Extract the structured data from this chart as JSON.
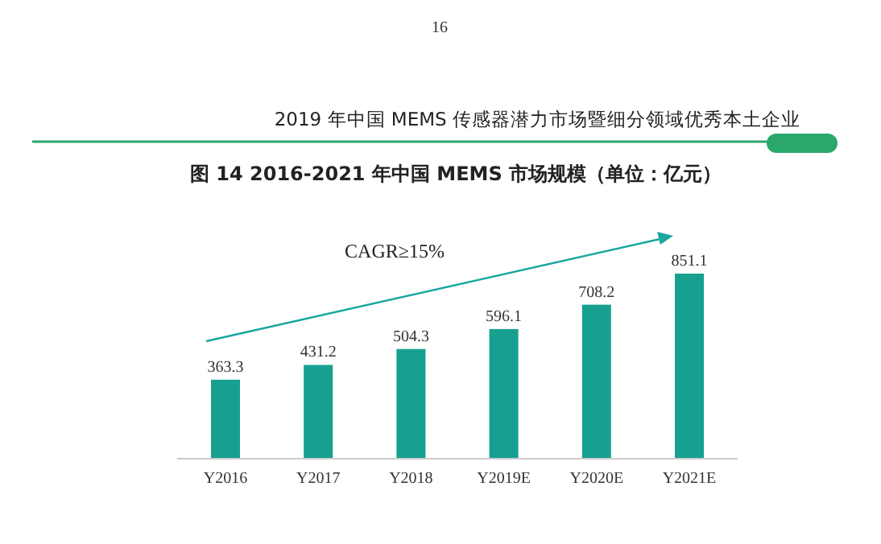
{
  "chart_data": {
    "type": "bar",
    "title": "图 14   2016-2021 年中国 MEMS 市场规模（单位：亿元）",
    "subtitle": "2019 年中国 MEMS 传感器潜力市场暨细分领域优秀本土企业",
    "annotations": [
      "16",
      "CAGR≥15%"
    ],
    "categories": [
      "Y2016",
      "Y2017",
      "Y2018",
      "Y2019E",
      "Y2020E",
      "Y2021E"
    ],
    "values": [
      363.3,
      431.2,
      504.3,
      596.1,
      708.2,
      851.1
    ],
    "color": "#17a08f",
    "data_labels": true
  }
}
